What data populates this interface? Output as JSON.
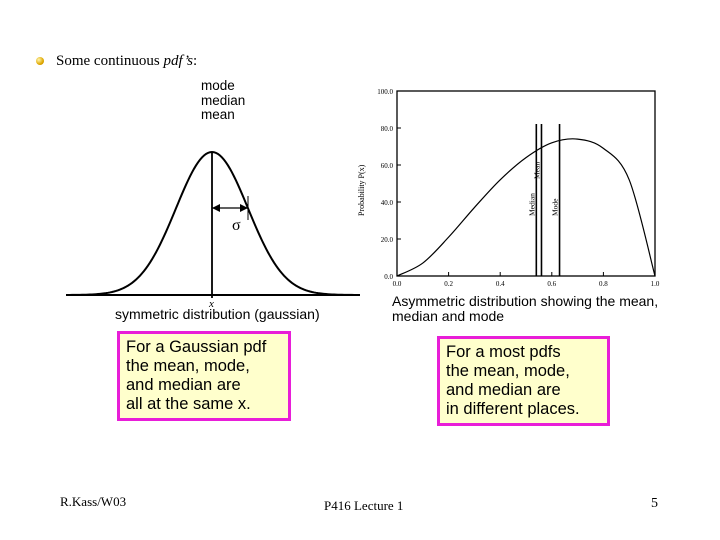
{
  "bullet": {
    "prefix": "Some continuous ",
    "italic": "pdf’s",
    "suffix": ":"
  },
  "gaussian": {
    "peak_labels": [
      "mode",
      "median",
      "mean"
    ],
    "sigma_label": "σ",
    "x_label": "x",
    "caption": "symmetric distribution (gaussian)"
  },
  "asymmetric": {
    "ylabel": "Probability P(x)",
    "y_ticks": [
      "100.0",
      "80.0",
      "60.0",
      "40.0",
      "20.0",
      "0.0"
    ],
    "x_ticks": [
      "0.0",
      "0.2",
      "0.4",
      "0.6",
      "0.8",
      "1.0"
    ],
    "line_labels": [
      "Median",
      "Mean",
      "Mode"
    ],
    "caption_line1": "Asymmetric distribution showing the mean,",
    "caption_line2": "median and mode"
  },
  "box_left": [
    "For a Gaussian pdf",
    "the mean, mode,",
    "and median are",
    "all at the same x."
  ],
  "box_right": [
    "For a most pdfs",
    "the mean, mode,",
    "and median are",
    "in different places."
  ],
  "footer": {
    "left": "R.Kass/W03",
    "center": "P416 Lecture 1",
    "right": "5"
  },
  "colors": {
    "box_border": "#e81ed8",
    "box_fill": "#ffffcc",
    "bullet": "#e0a800"
  },
  "chart_data": [
    {
      "type": "line",
      "x": [
        -3,
        -2.5,
        -2,
        -1.5,
        -1,
        -0.5,
        0,
        0.5,
        1,
        1.5,
        2,
        2.5,
        3
      ],
      "series": [
        {
          "values": [
            0.011,
            0.044,
            0.135,
            0.325,
            0.607,
            0.882,
            1.0,
            0.882,
            0.607,
            0.325,
            0.135,
            0.044,
            0.011
          ]
        }
      ],
      "annotations": [
        "mode",
        "median",
        "mean",
        "σ",
        "x"
      ],
      "title": "symmetric distribution (gaussian)",
      "grid": false
    },
    {
      "type": "line",
      "x": [
        0.0,
        0.1,
        0.2,
        0.3,
        0.4,
        0.5,
        0.6,
        0.7,
        0.8,
        0.9,
        1.0
      ],
      "series": [
        {
          "values": [
            0,
            7,
            21,
            37,
            52,
            64,
            72,
            74,
            69,
            52,
            0
          ]
        }
      ],
      "vertical_lines": {
        "Median": 0.54,
        "Mean": 0.56,
        "Mode": 0.63
      },
      "ylabel": "Probability P(x)",
      "xlim": [
        0,
        1.0
      ],
      "ylim": [
        0,
        100
      ],
      "title": "Asymmetric distribution showing the mean, median and mode",
      "grid": false
    }
  ]
}
